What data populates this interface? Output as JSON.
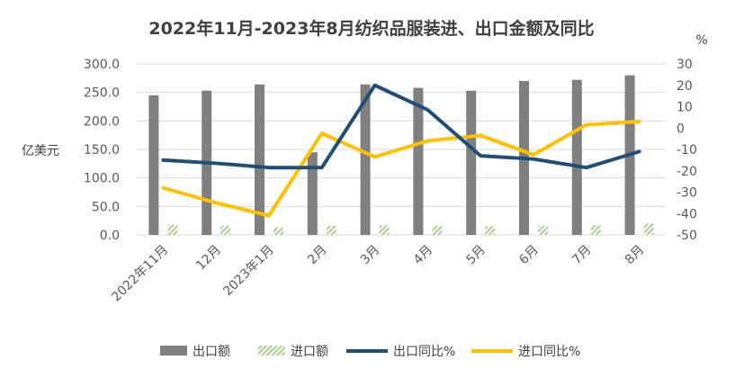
{
  "chart_data": {
    "type": "bar+line",
    "title": "2022年11月-2023年8月纺织品服装进、出口金额及同比",
    "categories": [
      "2022年11月",
      "12月",
      "2023年1月",
      "2月",
      "3月",
      "4月",
      "5月",
      "6月",
      "7月",
      "8月"
    ],
    "left_axis": {
      "label": "亿美元",
      "range": [
        0,
        300
      ],
      "ticks": [
        "0.0",
        "50.0",
        "100.0",
        "150.0",
        "200.0",
        "250.0",
        "300.0"
      ]
    },
    "right_axis": {
      "label": "%",
      "range": [
        -50,
        30
      ],
      "ticks": [
        "-50",
        "-40",
        "-30",
        "-20",
        "-10",
        "0",
        "10",
        "20",
        "30"
      ]
    },
    "series": [
      {
        "name": "出口额",
        "type": "bar",
        "axis": "left",
        "color": "#7f7f7f",
        "values": [
          245,
          253,
          264,
          145,
          264,
          258,
          253,
          270,
          272,
          280
        ]
      },
      {
        "name": "进口额",
        "type": "bar",
        "axis": "left",
        "color": "#a9d18e",
        "values": [
          18,
          16,
          13,
          16,
          17,
          16,
          15,
          16,
          17,
          20
        ]
      },
      {
        "name": "出口同比%",
        "type": "line",
        "axis": "right",
        "color": "#1f4e79",
        "values": [
          -15,
          -16.5,
          -18.5,
          -18.5,
          20,
          8.5,
          -13,
          -14.5,
          -18.5,
          -11
        ]
      },
      {
        "name": "进口同比%",
        "type": "line",
        "axis": "right",
        "color": "#ffc000",
        "values": [
          -28,
          -35,
          -41,
          -2.5,
          -13.5,
          -6,
          -3.5,
          -12.5,
          1.5,
          3
        ]
      }
    ]
  }
}
